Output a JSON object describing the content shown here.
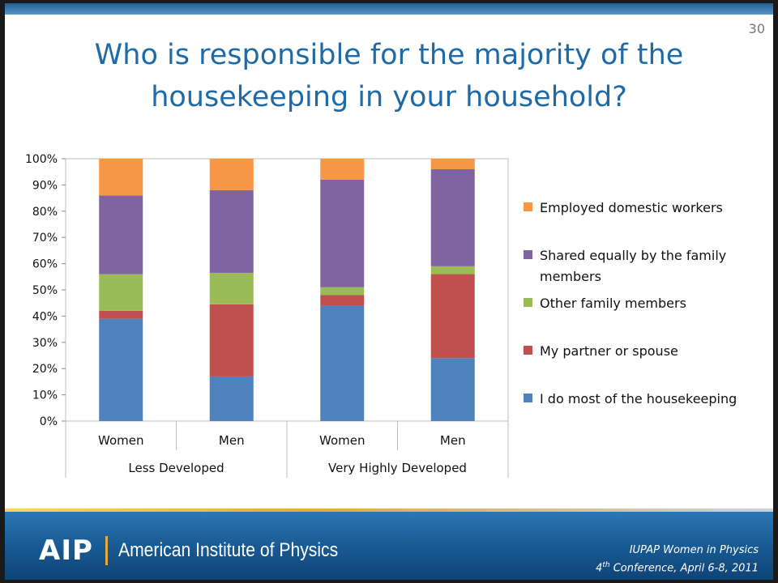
{
  "page_number": "30",
  "title_lines": [
    "Who is responsible for the majority of the",
    "housekeeping in your household?"
  ],
  "footer": {
    "logo_text": "AIP",
    "org_name": "American Institute of Physics",
    "conference_line1": "IUPAP Women in Physics",
    "conference_line2_num": "4",
    "conference_line2_sup": "th",
    "conference_line2_rest": " Conference, April 6-8, 2011"
  },
  "chart_data": {
    "type": "bar",
    "stacked": true,
    "percent_stacked": true,
    "categories": [
      "Women",
      "Men",
      "Women",
      "Men"
    ],
    "groups": [
      {
        "label": "Less Developed",
        "categories": [
          "Women",
          "Men"
        ]
      },
      {
        "label": "Very Highly Developed",
        "categories": [
          "Women",
          "Men"
        ]
      }
    ],
    "series": [
      {
        "name": "I do most of the housekeeping",
        "color": "#4f81bd",
        "values": [
          39,
          17,
          44,
          24
        ]
      },
      {
        "name": "My partner or spouse",
        "color": "#c0504d",
        "values": [
          3,
          27.5,
          4,
          32
        ]
      },
      {
        "name": "Other family members",
        "color": "#9bbb59",
        "values": [
          14,
          12,
          3,
          3
        ]
      },
      {
        "name": "Shared equally by the family members",
        "color": "#8064a2",
        "values": [
          30,
          31.5,
          41,
          37
        ]
      },
      {
        "name": "Employed domestic workers",
        "color": "#f79646",
        "values": [
          14,
          12,
          8,
          4
        ]
      }
    ],
    "legend_order": [
      "Employed domestic workers",
      "Shared equally by the family members",
      "Other family members",
      "My partner or spouse",
      "I do most of the housekeeping"
    ],
    "ylim": [
      0,
      100
    ],
    "yticks": [
      "0%",
      "10%",
      "20%",
      "30%",
      "40%",
      "50%",
      "60%",
      "70%",
      "80%",
      "90%",
      "100%"
    ],
    "grid": false,
    "legend_position": "right"
  }
}
